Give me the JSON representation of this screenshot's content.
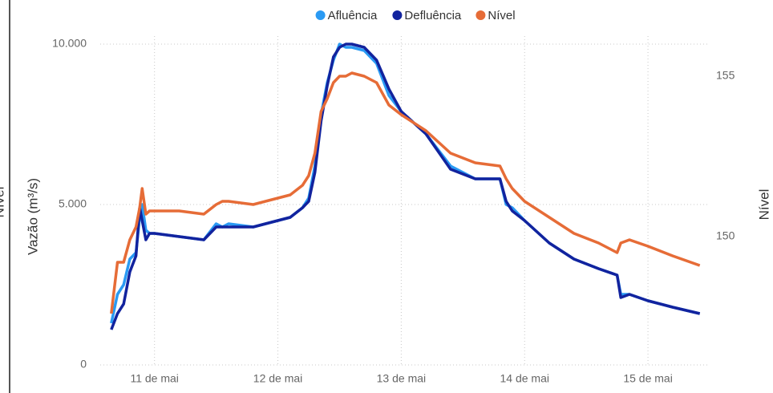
{
  "chart_data": {
    "type": "line",
    "left_edge_label": "Nível",
    "y_label": "Vazão (m³/s)",
    "y2_label": "Nível",
    "legend": "top",
    "grid": true,
    "x": [
      10.65,
      10.7,
      10.75,
      10.8,
      10.85,
      10.88,
      10.9,
      10.93,
      10.96,
      11.0,
      11.2,
      11.4,
      11.5,
      11.55,
      11.6,
      11.8,
      12.0,
      12.1,
      12.2,
      12.25,
      12.3,
      12.35,
      12.4,
      12.45,
      12.5,
      12.55,
      12.6,
      12.7,
      12.8,
      12.9,
      13.0,
      13.2,
      13.4,
      13.6,
      13.8,
      13.85,
      13.9,
      14.0,
      14.2,
      14.4,
      14.6,
      14.75,
      14.78,
      14.85,
      15.0,
      15.2,
      15.42
    ],
    "xlim": [
      10.56,
      15.5
    ],
    "xticks": [
      {
        "value": 11,
        "label": "11 de mai"
      },
      {
        "value": 12,
        "label": "12 de mai"
      },
      {
        "value": 13,
        "label": "13 de mai"
      },
      {
        "value": 14,
        "label": "14 de mai"
      },
      {
        "value": 15,
        "label": "15 de mai"
      }
    ],
    "ylim": [
      0,
      10000
    ],
    "yticks": [
      0,
      {
        "value": 5000,
        "label": "5.000"
      },
      {
        "value": 10000,
        "label": "10.000"
      }
    ],
    "y2lim": [
      146,
      156
    ],
    "y2ticks": [
      150,
      155
    ],
    "series": [
      {
        "name": "Afluência",
        "color": "#2a9af3",
        "values": [
          1300,
          2200,
          2500,
          3300,
          3500,
          4600,
          5000,
          4200,
          4100,
          4100,
          4000,
          3900,
          4400,
          4300,
          4400,
          4300,
          4500,
          4600,
          4900,
          5200,
          6200,
          7800,
          8800,
          9500,
          10000,
          9900,
          9900,
          9800,
          9400,
          8400,
          7900,
          7200,
          6200,
          5800,
          5800,
          5000,
          4900,
          4500,
          3800,
          3300,
          3000,
          2800,
          2200,
          2200,
          2000,
          1800,
          1600
        ]
      },
      {
        "name": "Defluência",
        "color": "#12239e",
        "values": [
          1100,
          1600,
          1900,
          2900,
          3400,
          4900,
          4500,
          3900,
          4100,
          4100,
          4000,
          3900,
          4300,
          4300,
          4300,
          4300,
          4500,
          4600,
          4900,
          5100,
          6000,
          7600,
          8700,
          9600,
          9900,
          10000,
          10000,
          9900,
          9500,
          8600,
          7900,
          7200,
          6100,
          5800,
          5800,
          5100,
          4800,
          4500,
          3800,
          3300,
          3000,
          2800,
          2100,
          2200,
          2000,
          1800,
          1600
        ]
      },
      {
        "name": "Nível",
        "color": "#e66c37",
        "axis": "y2",
        "values": [
          147.6,
          149.2,
          149.2,
          149.9,
          150.3,
          150.9,
          151.5,
          150.7,
          150.8,
          150.8,
          150.8,
          150.7,
          151.0,
          151.1,
          151.1,
          151.0,
          151.2,
          151.3,
          151.6,
          151.9,
          152.6,
          153.9,
          154.3,
          154.8,
          155.0,
          155.0,
          155.1,
          155.0,
          154.8,
          154.1,
          153.8,
          153.3,
          152.6,
          152.3,
          152.2,
          151.8,
          151.5,
          151.1,
          150.6,
          150.1,
          149.8,
          149.5,
          149.8,
          149.9,
          149.7,
          149.4,
          149.1
        ]
      }
    ]
  }
}
